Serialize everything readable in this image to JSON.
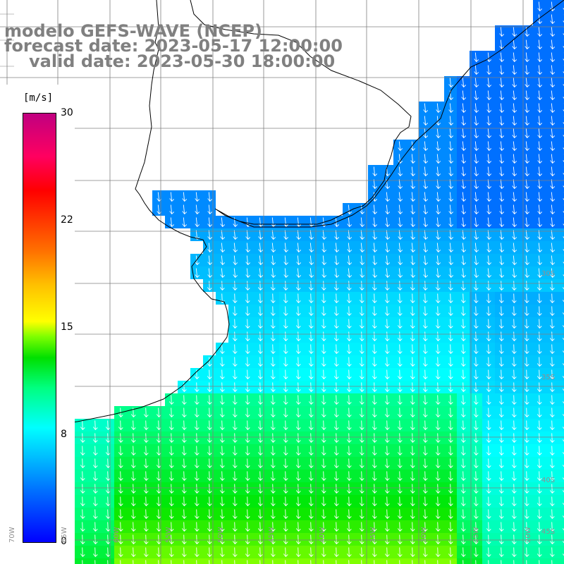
{
  "title": {
    "line1": "modelo GEFS-WAVE (NCEP)",
    "line2": "forecast date: 2023-05-17 12:00:00",
    "line3": "valid date: 2023-05-30 18:00:00"
  },
  "colorbar": {
    "unit": "[m/s]",
    "ticks": [
      "30",
      "22",
      "15",
      "8",
      "0"
    ],
    "tick_values": [
      30,
      22,
      15,
      8,
      0
    ],
    "range": [
      0,
      30
    ],
    "colors": [
      "#0000ff",
      "#00bfff",
      "#00ffff",
      "#00e000",
      "#ffff00",
      "#ff7000",
      "#ff0000",
      "#c00080"
    ]
  },
  "map": {
    "lat_labels": [
      "30S",
      "35S",
      "40S",
      "45S"
    ],
    "lon_labels": [
      "70W",
      "65W",
      "60W",
      "55W",
      "50W",
      "45W",
      "40W",
      "35W",
      "30W",
      "25W",
      "20W"
    ],
    "land_color": "#ffffff",
    "grid_color": "#808080",
    "arrow_color": "#ffffff"
  }
}
